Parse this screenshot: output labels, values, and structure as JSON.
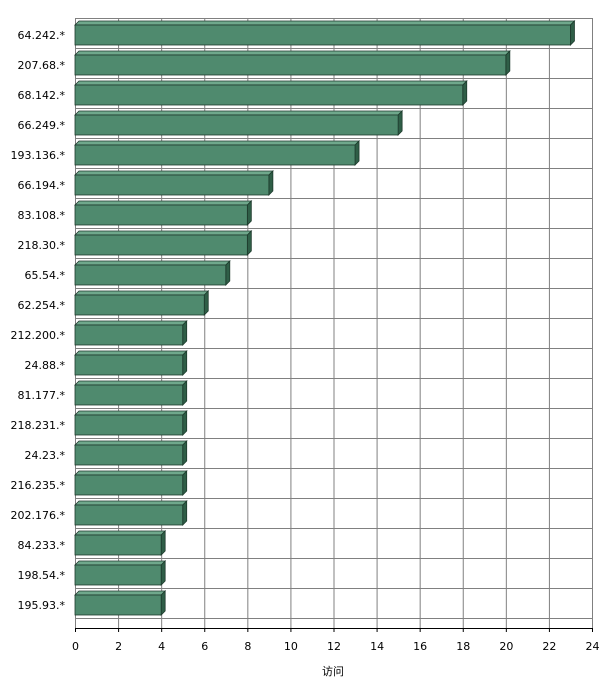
{
  "chart_data": {
    "type": "bar",
    "orientation": "horizontal",
    "style": "3d",
    "categories": [
      "64.242.*",
      "207.68.*",
      "68.142.*",
      "66.249.*",
      "193.136.*",
      "66.194.*",
      "83.108.*",
      "218.30.*",
      "65.54.*",
      "62.254.*",
      "212.200.*",
      "24.88.*",
      "81.177.*",
      "218.231.*",
      "24.23.*",
      "216.235.*",
      "202.176.*",
      "84.233.*",
      "198.54.*",
      "195.93.*"
    ],
    "values": [
      23,
      20,
      18,
      15,
      13,
      9,
      8,
      8,
      7,
      6,
      5,
      5,
      5,
      5,
      5,
      5,
      5,
      4,
      4,
      4
    ],
    "xlabel": "访问",
    "ylabel": "",
    "xlim": [
      0,
      24
    ],
    "xticks": [
      "0",
      "2",
      "4",
      "6",
      "8",
      "10",
      "12",
      "14",
      "16",
      "18",
      "20",
      "22",
      "24"
    ],
    "grid": true,
    "bar_color": "#4f8a6e",
    "bar_top_color": "#6fa88c",
    "bar_side_color": "#2f5e47",
    "grid_color": "#808080"
  }
}
